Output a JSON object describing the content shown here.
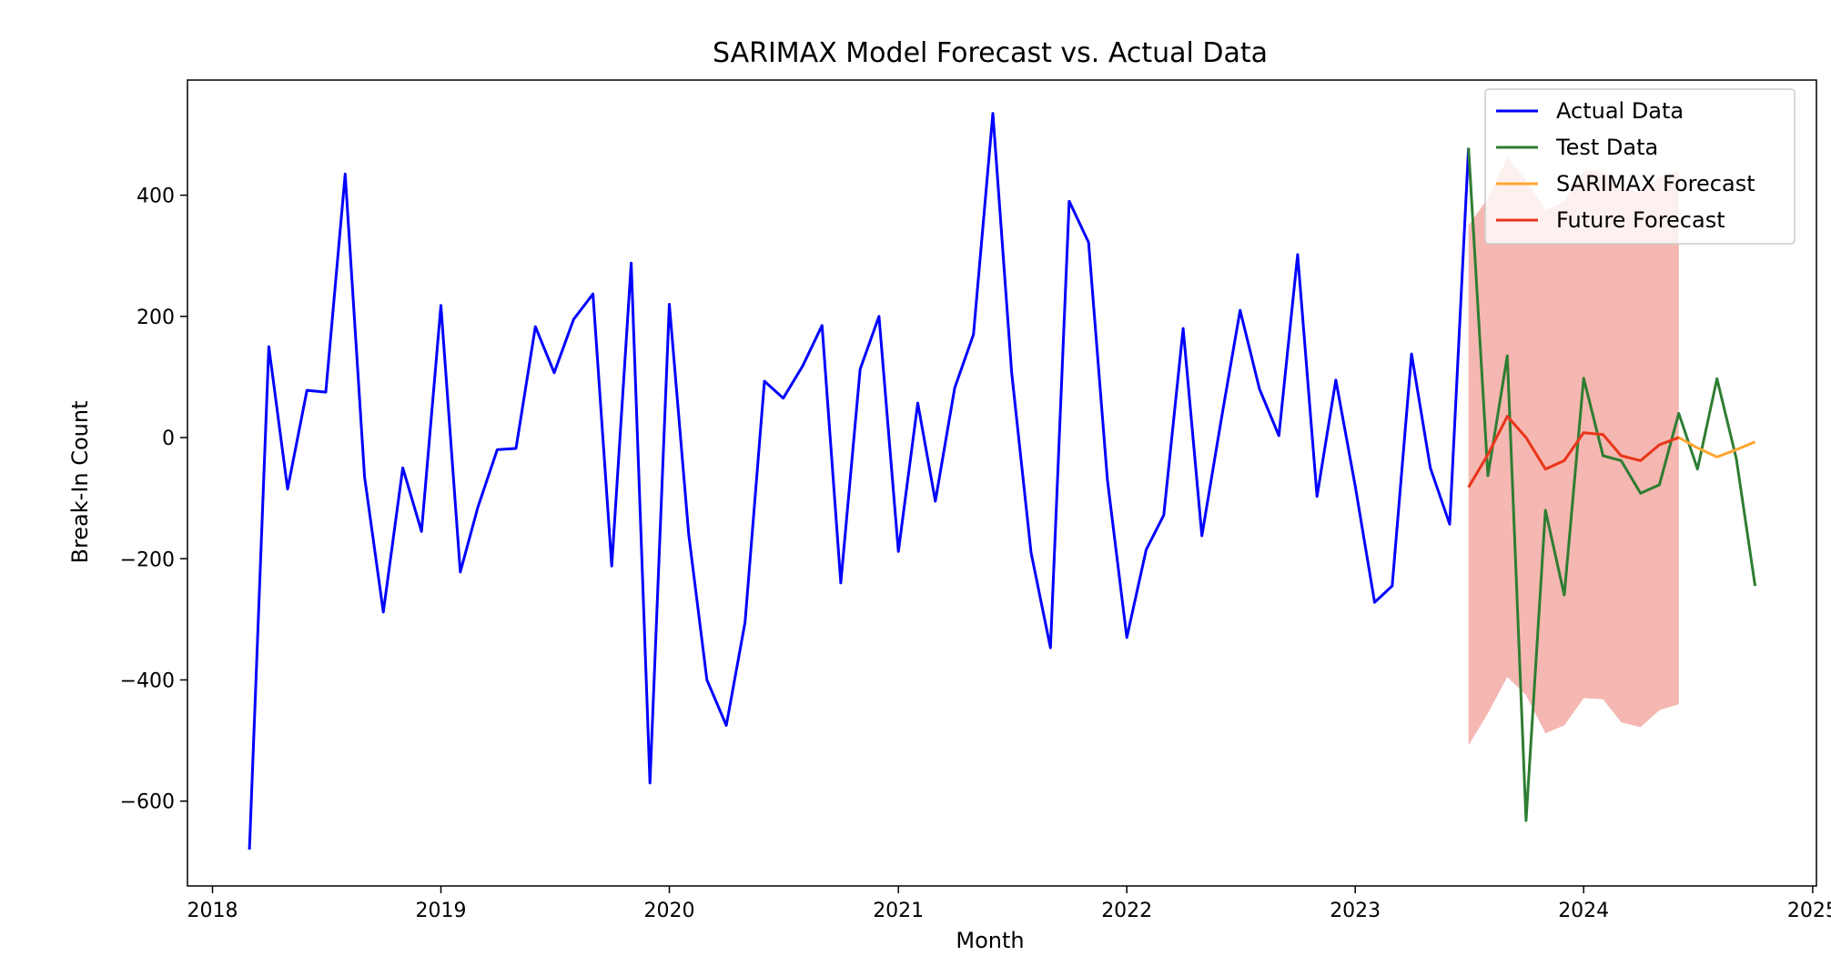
{
  "chart_data": {
    "type": "line",
    "title": "SARIMAX Model Forecast vs. Actual Data",
    "xlabel": "Month",
    "ylabel": "Break-In Count",
    "xlim": [
      "2017-11-22",
      "2025-01-07"
    ],
    "ylim": [
      -740,
      590
    ],
    "x_ticks": [
      "2018",
      "2019",
      "2020",
      "2021",
      "2022",
      "2023",
      "2024",
      "2025"
    ],
    "y_ticks": [
      -600,
      -400,
      -200,
      0,
      200,
      400
    ],
    "y_tick_labels": [
      "−600",
      "−400",
      "−200",
      "0",
      "200",
      "400"
    ],
    "legend": {
      "position": "top-right"
    },
    "series": [
      {
        "name": "Actual Data",
        "color": "#0000ff",
        "x": [
          "2018-03",
          "2018-04",
          "2018-05",
          "2018-06",
          "2018-07",
          "2018-08",
          "2018-09",
          "2018-10",
          "2018-11",
          "2018-12",
          "2019-01",
          "2019-02",
          "2019-03",
          "2019-04",
          "2019-05",
          "2019-06",
          "2019-07",
          "2019-08",
          "2019-09",
          "2019-10",
          "2019-11",
          "2019-12",
          "2020-01",
          "2020-02",
          "2020-03",
          "2020-04",
          "2020-05",
          "2020-06",
          "2020-07",
          "2020-08",
          "2020-09",
          "2020-10",
          "2020-11",
          "2020-12",
          "2021-01",
          "2021-02",
          "2021-03",
          "2021-04",
          "2021-05",
          "2021-06",
          "2021-07",
          "2021-08",
          "2021-09",
          "2021-10",
          "2021-11",
          "2021-12",
          "2022-01",
          "2022-02",
          "2022-03",
          "2022-04",
          "2022-05",
          "2022-06",
          "2022-07",
          "2022-08",
          "2022-09",
          "2022-10",
          "2022-11",
          "2022-12",
          "2023-01",
          "2023-02",
          "2023-03",
          "2023-04",
          "2023-05",
          "2023-06",
          "2023-07"
        ],
        "values": [
          -680,
          150,
          -85,
          78,
          75,
          435,
          -65,
          -288,
          -50,
          -155,
          218,
          -222,
          -115,
          -20,
          -18,
          183,
          107,
          195,
          237,
          -212,
          288,
          -570,
          220,
          -160,
          -400,
          -475,
          -305,
          93,
          65,
          118,
          185,
          -240,
          113,
          200,
          -188,
          57,
          -105,
          82,
          170,
          535,
          107,
          -190,
          -347,
          390,
          322,
          -70,
          -330,
          -185,
          -128,
          180,
          -162,
          30,
          210,
          80,
          3,
          302,
          -97,
          95,
          -80,
          -272,
          -245,
          138,
          -50,
          -143,
          478
        ]
      },
      {
        "name": "Test Data",
        "color": "#2e7d32",
        "x": [
          "2023-07",
          "2023-08",
          "2023-09",
          "2023-10",
          "2023-11",
          "2023-12",
          "2024-01",
          "2024-02",
          "2024-03",
          "2024-04",
          "2024-05",
          "2024-06",
          "2024-07",
          "2024-08",
          "2024-09",
          "2024-10"
        ],
        "values": [
          478,
          -63,
          135,
          -632,
          -120,
          -260,
          98,
          -30,
          -38,
          -92,
          -78,
          40,
          -52,
          97,
          -35,
          -245
        ]
      },
      {
        "name": "SARIMAX Forecast",
        "color": "#ffa630",
        "x": [
          "2023-07",
          "2023-08",
          "2023-09",
          "2023-10",
          "2023-11",
          "2023-12",
          "2024-01",
          "2024-02",
          "2024-03",
          "2024-04",
          "2024-05",
          "2024-06",
          "2024-07",
          "2024-08",
          "2024-09",
          "2024-10"
        ],
        "values": [
          -82,
          -28,
          35,
          0,
          -52,
          -38,
          8,
          5,
          -30,
          -38,
          -12,
          0,
          -17,
          -32,
          -20,
          -7
        ]
      },
      {
        "name": "Future Forecast",
        "color": "#e8351e",
        "x": [
          "2023-07",
          "2023-08",
          "2023-09",
          "2023-10",
          "2023-11",
          "2023-12",
          "2024-01",
          "2024-02",
          "2024-03",
          "2024-04",
          "2024-05",
          "2024-06"
        ],
        "values": [
          -82,
          -28,
          35,
          0,
          -52,
          -38,
          8,
          5,
          -30,
          -38,
          -12,
          0
        ]
      }
    ],
    "confidence_band": {
      "color": "#e74c3c",
      "x": [
        "2023-07",
        "2023-08",
        "2023-09",
        "2023-10",
        "2023-11",
        "2023-12",
        "2024-01",
        "2024-02",
        "2024-03",
        "2024-04",
        "2024-05",
        "2024-06"
      ],
      "lower": [
        -508,
        -455,
        -395,
        -425,
        -488,
        -475,
        -430,
        -432,
        -470,
        -478,
        -450,
        -440
      ],
      "upper": [
        350,
        395,
        462,
        425,
        375,
        390,
        440,
        440,
        410,
        405,
        430,
        440
      ]
    }
  }
}
